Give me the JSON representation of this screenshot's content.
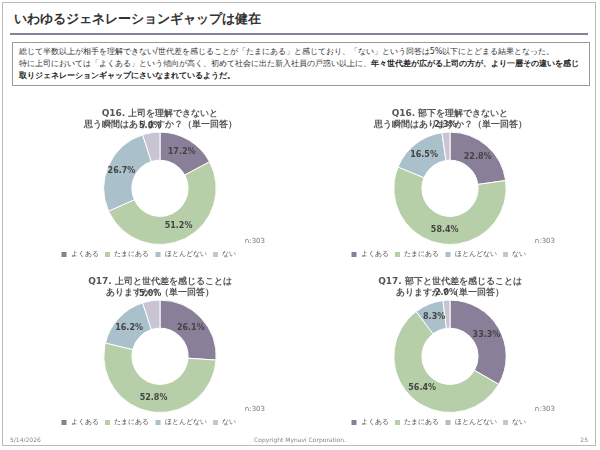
{
  "header": {
    "title": "いわゆるジェネレーションギャップは健在"
  },
  "summary": {
    "first": "総じて半数以上が相手を理解できない/世代差を感じることが「たまにある」と感じており、「ない」という回答は5%以下にとどまる結果となった。",
    "second": "特に上司においては「よくある」という傾向が高く、初めて社会に出た新入社員の戸惑い以上に、",
    "emphasis": "年々世代差が広がる上司の方が、より一層その違いを感じ取りジェネレーションギャップにさいなまれているようだ。"
  },
  "chart_data": [
    {
      "type": "doughnut",
      "title": [
        "Q16. 上司を理解できないと",
        "思う瞬間はありますか？（単一回答）"
      ],
      "categories": [
        "よくある",
        "たまにある",
        "ほとんどない",
        "ない"
      ],
      "values": [
        17.2,
        51.2,
        26.7,
        5.0
      ],
      "value_labels": [
        "17.2%",
        "51.2%",
        "26.7%",
        "5.0%"
      ],
      "colors": [
        "#8a7f99",
        "#b7cfa8",
        "#aac0ca",
        "#c9c4d2"
      ],
      "data_labels": true,
      "legend": "bottom-left",
      "annotation": "n:303"
    },
    {
      "type": "doughnut",
      "title": [
        "Q16. 部下を理解できないと",
        "思う瞬間はありますか？（単一回答）"
      ],
      "categories": [
        "よくある",
        "たまにある",
        "ほとんどない",
        "ない"
      ],
      "values": [
        22.8,
        58.4,
        16.5,
        2.3
      ],
      "value_labels": [
        "22.8%",
        "58.4%",
        "16.5%",
        "2.3%"
      ],
      "colors": [
        "#8a7f99",
        "#b7cfa8",
        "#aac0ca",
        "#c9c4d2"
      ],
      "data_labels": true,
      "legend": "bottom-left",
      "annotation": "n:303"
    },
    {
      "type": "doughnut",
      "title": [
        "Q17. 上司と世代差を感じることは",
        "ありますか？（単一回答）"
      ],
      "categories": [
        "よくある",
        "たまにある",
        "ほとんどない",
        "ない"
      ],
      "values": [
        26.1,
        52.8,
        16.2,
        5.0
      ],
      "value_labels": [
        "26.1%",
        "52.8%",
        "16.2%",
        "5.0%"
      ],
      "colors": [
        "#8a7f99",
        "#b7cfa8",
        "#aac0ca",
        "#c9c4d2"
      ],
      "data_labels": true,
      "legend": "bottom-left",
      "annotation": "n:303"
    },
    {
      "type": "doughnut",
      "title": [
        "Q17. 部下と世代差を感じることは",
        "ありますか？（単一回答）"
      ],
      "categories": [
        "よくある",
        "たまにある",
        "ほとんどない",
        "ない"
      ],
      "values": [
        33.3,
        56.4,
        8.3,
        2.0
      ],
      "value_labels": [
        "33.3%",
        "56.4%",
        "8.3%",
        "2.0%"
      ],
      "colors": [
        "#8a7f99",
        "#b7cfa8",
        "#aac0ca",
        "#c9c4d2"
      ],
      "data_labels": true,
      "legend": "bottom-left",
      "annotation": "n:303"
    }
  ],
  "footer": {
    "date": "5/14/2026",
    "copyright": "Copyright Mynavi Corporation.",
    "page": "25"
  }
}
